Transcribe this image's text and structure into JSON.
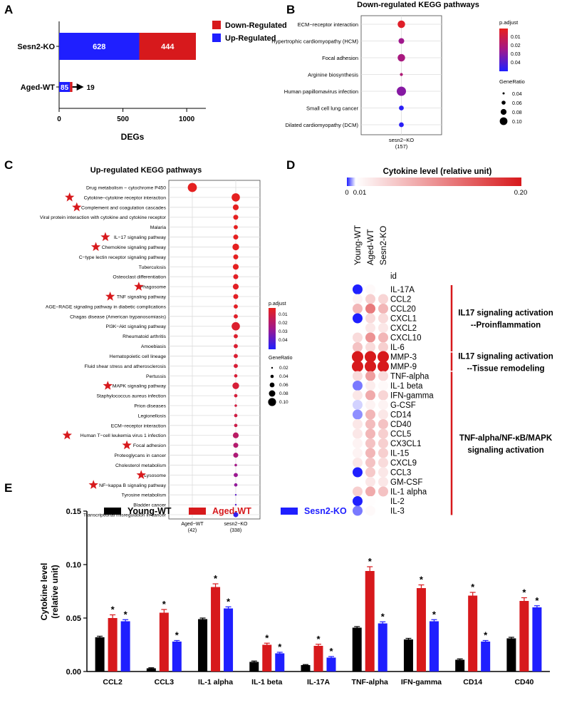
{
  "panel_letters": [
    "A",
    "B",
    "C",
    "D",
    "E"
  ],
  "colors": {
    "red": "#d7191c",
    "blue": "#1f1fff",
    "black": "#000000",
    "grid": "#dcdcdc",
    "panel_border": "#444444"
  },
  "chart_data": [
    {
      "panel": "A",
      "type": "bar",
      "orientation": "horizontal",
      "stacked": true,
      "categories": [
        "Sesn2-KO",
        "Aged-WT"
      ],
      "series": [
        {
          "name": "Up-Regulated",
          "values": [
            628,
            85
          ],
          "color": "#1f1fff"
        },
        {
          "name": "Down-Regulated",
          "values": [
            444,
            19
          ],
          "color": "#d7191c"
        }
      ],
      "data_labels": [
        "628",
        "444",
        "85",
        "19"
      ],
      "xlabel": "DEGs",
      "xlim": [
        0,
        1150
      ],
      "xticks": [
        0,
        500,
        1000
      ],
      "xtick_labels": [
        "0",
        "500",
        "1000"
      ],
      "legend": [
        "Down-Regulated",
        "Up-Regulated"
      ]
    },
    {
      "panel": "B",
      "type": "scatter",
      "title": "Down-regulated KEGG pathways",
      "pathways": [
        "ECM−receptor interaction",
        "Hypertrophic cardiomyopathy (HCM)",
        "Focal adhesion",
        "Arginine biosynthesis",
        "Human papillomavirus infection",
        "Small cell lung cancer",
        "Dilated cardiomyopathy (DCM)"
      ],
      "gene_ratio": [
        0.08,
        0.06,
        0.08,
        0.03,
        0.1,
        0.05,
        0.05
      ],
      "p_adjust": [
        0.003,
        0.025,
        0.022,
        0.02,
        0.03,
        0.048,
        0.048
      ],
      "x_categories": [
        "sesn2−KO"
      ],
      "x_counts": [
        "(157)"
      ],
      "legend_padjust_title": "p.adjust",
      "legend_padjust_ticks": [
        "0.01",
        "0.02",
        "0.03",
        "0.04"
      ],
      "legend_generatio_title": "GeneRatio",
      "legend_generatio_ticks": [
        "0.04",
        "0.06",
        "0.08",
        "0.10"
      ]
    },
    {
      "panel": "C",
      "type": "scatter",
      "title": "Up-regulated KEGG pathways",
      "pathways": [
        {
          "name": "Drug metabolism − cytochrome P450",
          "star": false,
          "group": 0,
          "ratio": 0.11,
          "padj": 0.001
        },
        {
          "name": "Cytokine−cytokine receptor interaction",
          "star": true,
          "group": 1,
          "ratio": 0.1,
          "padj": 0.001
        },
        {
          "name": "Complement and coagulation cascades",
          "star": true,
          "group": 1,
          "ratio": 0.07,
          "padj": 0.001
        },
        {
          "name": "Viral protein interaction with cytokine and cytokine receptor",
          "star": false,
          "group": 1,
          "ratio": 0.06,
          "padj": 0.001
        },
        {
          "name": "Malaria",
          "star": false,
          "group": 1,
          "ratio": 0.05,
          "padj": 0.001
        },
        {
          "name": "IL−17 signaling pathway",
          "star": true,
          "group": 1,
          "ratio": 0.06,
          "padj": 0.001
        },
        {
          "name": "Chemokine signaling pathway",
          "star": true,
          "group": 1,
          "ratio": 0.08,
          "padj": 0.001
        },
        {
          "name": "C−type lectin receptor signaling pathway",
          "star": false,
          "group": 1,
          "ratio": 0.06,
          "padj": 0.001
        },
        {
          "name": "Tuberculosis",
          "star": false,
          "group": 1,
          "ratio": 0.07,
          "padj": 0.001
        },
        {
          "name": "Osteoclast differentiation",
          "star": false,
          "group": 1,
          "ratio": 0.06,
          "padj": 0.002
        },
        {
          "name": "Phagosome",
          "star": true,
          "group": 1,
          "ratio": 0.07,
          "padj": 0.002
        },
        {
          "name": "TNF signaling pathway",
          "star": true,
          "group": 1,
          "ratio": 0.06,
          "padj": 0.002
        },
        {
          "name": "AGE−RAGE signaling pathway in diabetic complications",
          "star": false,
          "group": 1,
          "ratio": 0.05,
          "padj": 0.002
        },
        {
          "name": "Chagas disease (American trypanosomiasis)",
          "star": false,
          "group": 1,
          "ratio": 0.05,
          "padj": 0.003
        },
        {
          "name": "PI3K−Akt signaling pathway",
          "star": false,
          "group": 1,
          "ratio": 0.1,
          "padj": 0.004
        },
        {
          "name": "Rheumatoid arthritis",
          "star": false,
          "group": 1,
          "ratio": 0.05,
          "padj": 0.004
        },
        {
          "name": "Amoebiasis",
          "star": false,
          "group": 1,
          "ratio": 0.05,
          "padj": 0.005
        },
        {
          "name": "Hematopoietic cell lineage",
          "star": false,
          "group": 1,
          "ratio": 0.05,
          "padj": 0.005
        },
        {
          "name": "Fluid shear stress and atherosclerosis",
          "star": false,
          "group": 1,
          "ratio": 0.05,
          "padj": 0.006
        },
        {
          "name": "Pertussis",
          "star": false,
          "group": 1,
          "ratio": 0.04,
          "padj": 0.006
        },
        {
          "name": "MAPK signaling pathway",
          "star": true,
          "group": 1,
          "ratio": 0.08,
          "padj": 0.006
        },
        {
          "name": "Staphylococcus aureus infection",
          "star": false,
          "group": 1,
          "ratio": 0.04,
          "padj": 0.007
        },
        {
          "name": "Prion diseases",
          "star": false,
          "group": 1,
          "ratio": 0.03,
          "padj": 0.008
        },
        {
          "name": "Legionellosis",
          "star": false,
          "group": 1,
          "ratio": 0.04,
          "padj": 0.009
        },
        {
          "name": "ECM−receptor interaction",
          "star": false,
          "group": 1,
          "ratio": 0.04,
          "padj": 0.01
        },
        {
          "name": "Human T−cell leukemia virus 1 infection",
          "star": true,
          "group": 1,
          "ratio": 0.07,
          "padj": 0.016
        },
        {
          "name": "Focal adhesion",
          "star": true,
          "group": 1,
          "ratio": 0.06,
          "padj": 0.018
        },
        {
          "name": "Proteoglycans in cancer",
          "star": false,
          "group": 1,
          "ratio": 0.06,
          "padj": 0.02
        },
        {
          "name": "Cholesterol metabolism",
          "star": false,
          "group": 1,
          "ratio": 0.03,
          "padj": 0.024
        },
        {
          "name": "Lysosome",
          "star": true,
          "group": 1,
          "ratio": 0.05,
          "padj": 0.026
        },
        {
          "name": "NF−kappa B signaling pathway",
          "star": true,
          "group": 1,
          "ratio": 0.04,
          "padj": 0.028
        },
        {
          "name": "Tyrosine metabolism",
          "star": false,
          "group": 1,
          "ratio": 0.02,
          "padj": 0.038
        },
        {
          "name": "Bladder cancer",
          "star": false,
          "group": 1,
          "ratio": 0.02,
          "padj": 0.04
        },
        {
          "name": "Transcriptional misregulation in cancer",
          "star": false,
          "group": 1,
          "ratio": 0.06,
          "padj": 0.046
        }
      ],
      "x_categories": [
        "Aged−WT",
        "sesn2−KO"
      ],
      "x_counts": [
        "(42)",
        "(338)"
      ],
      "legend_padjust_title": "p.adjust",
      "legend_padjust_ticks": [
        "0.01",
        "0.02",
        "0.03",
        "0.04"
      ],
      "legend_generatio_title": "GeneRatio",
      "legend_generatio_ticks": [
        "0.02",
        "0.04",
        "0.06",
        "0.08",
        "0.10"
      ]
    },
    {
      "panel": "D",
      "type": "heatmap",
      "title": "Cytokine level (relative unit)",
      "scale_ticks": [
        "0",
        "0.01",
        "0.20"
      ],
      "column_labels": [
        "Young-WT",
        "Aged-WT",
        "Sesn2-KO"
      ],
      "id_label": "id",
      "rows": [
        {
          "name": "IL-17A",
          "values": [
            0.0,
            0.015,
            null
          ]
        },
        {
          "name": "CCL2",
          "values": [
            0.02,
            0.05,
            0.045
          ]
        },
        {
          "name": "CCL20",
          "values": [
            0.07,
            0.12,
            0.07
          ]
        },
        {
          "name": "CXCL1",
          "values": [
            0.0,
            0.04,
            0.04
          ]
        },
        {
          "name": "CXCL2",
          "values": [
            null,
            0.03,
            0.03
          ]
        },
        {
          "name": "CXCL10",
          "values": [
            0.04,
            0.1,
            0.07
          ]
        },
        {
          "name": "IL-6",
          "values": [
            0.06,
            0.04,
            0.05
          ]
        },
        {
          "name": "MMP-3",
          "values": [
            0.2,
            0.2,
            0.2
          ]
        },
        {
          "name": "MMP-9",
          "values": [
            0.2,
            0.2,
            0.2
          ]
        },
        {
          "name": "TNF-alpha",
          "values": [
            0.04,
            0.09,
            0.04
          ]
        },
        {
          "name": "IL-1 beta",
          "values": [
            0.004,
            0.025,
            0.015
          ]
        },
        {
          "name": "IFN-gamma",
          "values": [
            0.03,
            0.08,
            0.045
          ]
        },
        {
          "name": "G-CSF",
          "values": [
            0.008,
            0.02,
            0.02
          ]
        },
        {
          "name": "CD14",
          "values": [
            0.005,
            0.07,
            0.03
          ]
        },
        {
          "name": "CD40",
          "values": [
            0.03,
            0.065,
            0.06
          ]
        },
        {
          "name": "CCL5",
          "values": [
            0.03,
            0.07,
            0.05
          ]
        },
        {
          "name": "CX3CL1",
          "values": [
            0.02,
            0.06,
            0.05
          ]
        },
        {
          "name": "IL-15",
          "values": [
            0.02,
            0.07,
            0.05
          ]
        },
        {
          "name": "CXCL9",
          "values": [
            0.03,
            0.06,
            0.04
          ]
        },
        {
          "name": "CCL3",
          "values": [
            0.0,
            0.055,
            0.03
          ]
        },
        {
          "name": "GM-CSF",
          "values": [
            null,
            0.03,
            0.03
          ]
        },
        {
          "name": "IL-1 alpha",
          "values": [
            0.05,
            0.08,
            0.06
          ]
        },
        {
          "name": "IL-2",
          "values": [
            0.0,
            0.012,
            null
          ]
        },
        {
          "name": "IL-3",
          "values": [
            0.004,
            0.015,
            null
          ]
        }
      ],
      "annotations": [
        {
          "lines": [
            "IL17 signaling activation",
            "--Proinflammation"
          ],
          "from_row": 0,
          "to_row": 6
        },
        {
          "lines": [
            "IL17 signaling activation",
            "--Tissue remodeling"
          ],
          "from_row": 7,
          "to_row": 8
        },
        {
          "lines": [
            "TNF-alpha/NF-κB/MAPK",
            "signaling activation"
          ],
          "from_row": 9,
          "to_row": 23
        }
      ]
    },
    {
      "panel": "E",
      "type": "bar",
      "categories": [
        "CCL2",
        "CCL3",
        "IL-1 alpha",
        "IL-1 beta",
        "IL-17A",
        "TNF-alpha",
        "IFN-gamma",
        "CD14",
        "CD40"
      ],
      "series": [
        {
          "name": "Young-WT",
          "values": [
            0.032,
            0.003,
            0.049,
            0.009,
            0.006,
            0.041,
            0.03,
            0.011,
            0.031
          ],
          "errors": [
            0.001,
            0.0005,
            0.001,
            0.0008,
            0.0005,
            0.001,
            0.001,
            0.0008,
            0.001
          ],
          "stars": [
            false,
            false,
            false,
            false,
            false,
            false,
            false,
            false,
            false
          ],
          "color": "#000000"
        },
        {
          "name": "Aged-WT",
          "values": [
            0.05,
            0.055,
            0.079,
            0.025,
            0.024,
            0.094,
            0.078,
            0.071,
            0.066
          ],
          "errors": [
            0.003,
            0.003,
            0.003,
            0.0015,
            0.0015,
            0.004,
            0.003,
            0.003,
            0.003
          ],
          "stars": [
            true,
            true,
            true,
            true,
            true,
            true,
            true,
            true,
            true
          ],
          "color": "#d7191c"
        },
        {
          "name": "Sesn2-KO",
          "values": [
            0.047,
            0.028,
            0.059,
            0.017,
            0.013,
            0.045,
            0.047,
            0.028,
            0.06
          ],
          "errors": [
            0.0015,
            0.001,
            0.0015,
            0.001,
            0.001,
            0.0015,
            0.0015,
            0.001,
            0.0015
          ],
          "stars": [
            true,
            true,
            true,
            true,
            true,
            true,
            true,
            true,
            true
          ],
          "color": "#1f1fff"
        }
      ],
      "star_symbol": "*",
      "ylabel_lines": [
        "Cytokine level",
        "(relative unit)"
      ],
      "ylim": [
        0,
        0.15
      ],
      "yticks": [
        0.0,
        0.05,
        0.1,
        0.15
      ],
      "ytick_labels": [
        "0.00",
        "0.05",
        "0.10",
        "0.15"
      ],
      "legend": [
        "Young-WT",
        "Aged-WT",
        "Sesn2-KO"
      ]
    }
  ]
}
